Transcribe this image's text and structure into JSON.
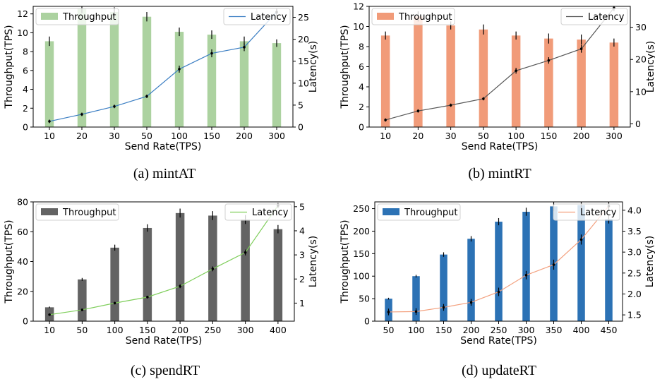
{
  "chart_data": [
    {
      "id": "a",
      "type": "bar",
      "caption": "(a) mintAT",
      "xlabel": "Send Rate(TPS)",
      "ylabel": "Throughput(TPS)",
      "y2label": "Latency(s)",
      "categories": [
        "10",
        "20",
        "30",
        "50",
        "100",
        "150",
        "200",
        "300"
      ],
      "ylim": [
        0,
        12.8
      ],
      "yticks": [
        0,
        2,
        4,
        6,
        8,
        10,
        12
      ],
      "y2lim": [
        0,
        27.5
      ],
      "y2ticks": [
        0,
        5,
        10,
        15,
        20,
        25
      ],
      "series": [
        {
          "name": "Throughput",
          "kind": "bar",
          "axis": "left",
          "color": "#acd2a0",
          "values": [
            9.1,
            12.6,
            12.2,
            11.7,
            10.1,
            9.8,
            9.1,
            8.9
          ],
          "errors": [
            0.5,
            0.5,
            0.5,
            0.5,
            0.45,
            0.45,
            0.5,
            0.4
          ]
        },
        {
          "name": "Latency",
          "kind": "line",
          "axis": "right",
          "color": "#3b7ec3",
          "values": [
            1.3,
            2.9,
            4.7,
            7.0,
            13.2,
            16.8,
            18.2,
            26.2
          ],
          "errors": [
            0.4,
            0.4,
            0.4,
            0.4,
            0.8,
            0.9,
            0.9,
            0.9
          ]
        }
      ],
      "legend_left": "upper-left",
      "legend_right": "upper-right"
    },
    {
      "id": "b",
      "type": "bar",
      "caption": "(b) mintRT",
      "xlabel": "Send Rate(TPS)",
      "ylabel": "Throughput(TPS)",
      "y2label": "Latency(s)",
      "categories": [
        "10",
        "20",
        "30",
        "50",
        "100",
        "150",
        "200",
        "300"
      ],
      "ylim": [
        0,
        12
      ],
      "yticks": [
        0,
        2,
        4,
        6,
        8,
        10,
        12
      ],
      "y2lim": [
        -1,
        36.5
      ],
      "y2ticks": [
        0,
        10,
        20,
        30
      ],
      "series": [
        {
          "name": "Throughput",
          "kind": "bar",
          "axis": "left",
          "color": "#f19b79",
          "values": [
            9.1,
            11.0,
            10.1,
            9.7,
            9.1,
            8.8,
            8.7,
            8.4
          ],
          "errors": [
            0.4,
            0.5,
            0.4,
            0.5,
            0.4,
            0.5,
            0.5,
            0.4
          ]
        },
        {
          "name": "Latency",
          "kind": "line",
          "axis": "right",
          "color": "#555555",
          "values": [
            1.2,
            4.0,
            5.8,
            7.8,
            16.5,
            19.7,
            23.3,
            36.0
          ],
          "errors": [
            0.5,
            0.5,
            0.5,
            0.5,
            0.9,
            1.0,
            1.2,
            1.0
          ]
        }
      ],
      "legend_left": "upper-left",
      "legend_right": "upper-right"
    },
    {
      "id": "c",
      "type": "bar",
      "caption": "(c) spendRT",
      "xlabel": "Send Rate(TPS)",
      "ylabel": "Throughput(TPS)",
      "y2label": "Latency(s)",
      "categories": [
        "10",
        "50",
        "100",
        "150",
        "200",
        "250",
        "300",
        "400"
      ],
      "ylim": [
        0,
        80
      ],
      "yticks": [
        0,
        20,
        40,
        60,
        80
      ],
      "y2lim": [
        0.25,
        5.2
      ],
      "y2ticks": [
        1,
        2,
        3,
        4,
        5
      ],
      "series": [
        {
          "name": "Throughput",
          "kind": "bar",
          "axis": "left",
          "color": "#636363",
          "values": [
            9.3,
            28.0,
            49.3,
            62.5,
            72.5,
            70.8,
            68.2,
            61.7
          ],
          "errors": [
            0.5,
            1.0,
            2.0,
            2.5,
            3.0,
            3.0,
            3.0,
            2.8
          ]
        },
        {
          "name": "Latency",
          "kind": "line",
          "axis": "right",
          "color": "#7fce5b",
          "values": [
            0.52,
            0.72,
            1.0,
            1.25,
            1.7,
            2.42,
            3.1,
            5.05
          ],
          "errors": [
            0.05,
            0.05,
            0.05,
            0.05,
            0.08,
            0.1,
            0.12,
            0.1
          ]
        }
      ],
      "legend_left": "upper-left",
      "legend_right": "upper-right"
    },
    {
      "id": "d",
      "type": "bar",
      "caption": "(d) updateRT",
      "xlabel": "Send Rate(TPS)",
      "ylabel": "Throughput(TPS)",
      "y2label": "Latency(s)",
      "categories": [
        "50",
        "100",
        "150",
        "200",
        "250",
        "300",
        "350",
        "400",
        "450"
      ],
      "ylim": [
        0,
        265
      ],
      "yticks": [
        0,
        50,
        100,
        150,
        200,
        250
      ],
      "y2lim": [
        1.35,
        4.2
      ],
      "y2ticks": [
        1.5,
        2.0,
        2.5,
        3.0,
        3.5,
        4.0
      ],
      "series": [
        {
          "name": "Throughput",
          "kind": "bar",
          "axis": "left",
          "color": "#2c72b5",
          "values": [
            50,
            100,
            148,
            183,
            221,
            243,
            255,
            258,
            227
          ],
          "errors": [
            2,
            3,
            5,
            6,
            8,
            9,
            10,
            12,
            10
          ]
        },
        {
          "name": "Latency",
          "kind": "line",
          "axis": "right",
          "color": "#f3a07e",
          "values": [
            1.57,
            1.58,
            1.68,
            1.8,
            2.05,
            2.45,
            2.7,
            3.3,
            4.1
          ],
          "errors": [
            0.08,
            0.08,
            0.08,
            0.08,
            0.1,
            0.1,
            0.12,
            0.12,
            0.12
          ]
        }
      ],
      "legend_left": "upper-left",
      "legend_right": "upper-right"
    }
  ]
}
